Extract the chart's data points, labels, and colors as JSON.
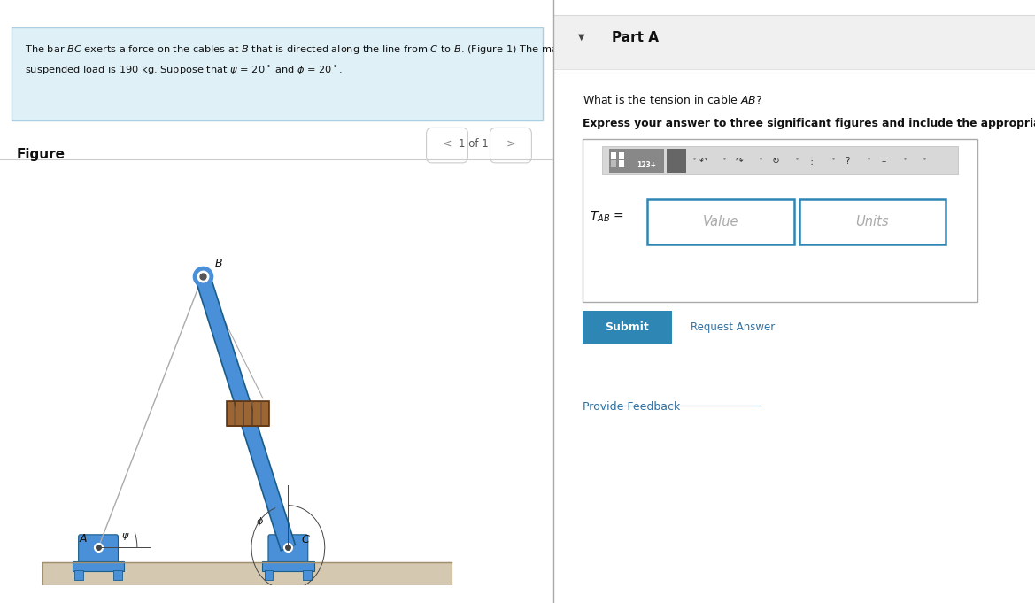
{
  "bg_color": "#ffffff",
  "info_box_bg": "#dff0f7",
  "info_box_border": "#aacfe0",
  "right_panel_bg": "#f8f8f8",
  "crane_color": "#4a90d9",
  "crane_dark": "#1a5c8a",
  "ground_color_top": "#d4c9b0",
  "ground_color_edge": "#b0a080",
  "load_color": "#8b5a2b",
  "load_dark": "#5c3310",
  "cable_color": "#999999",
  "label_color": "#222222",
  "link_color": "#3070a0",
  "submit_color": "#2e86b5",
  "toolbar_bg": "#cccccc",
  "btn123_color": "#777777",
  "btn_dark_color": "#555555",
  "input_border_color": "#2e86b5",
  "divider_color": "#cccccc",
  "part_a_label": "Part A",
  "figure_label": "Figure",
  "figure_nav": "1 of 1",
  "question_text": "What is the tension in cable AB?",
  "bold_instruction": "Express your answer to three significant figures and include the appropriate units.",
  "value_placeholder": "Value",
  "units_placeholder": "Units",
  "submit_btn_text": "Submit",
  "request_answer_text": "Request Answer",
  "provide_feedback_text": "Provide Feedback"
}
